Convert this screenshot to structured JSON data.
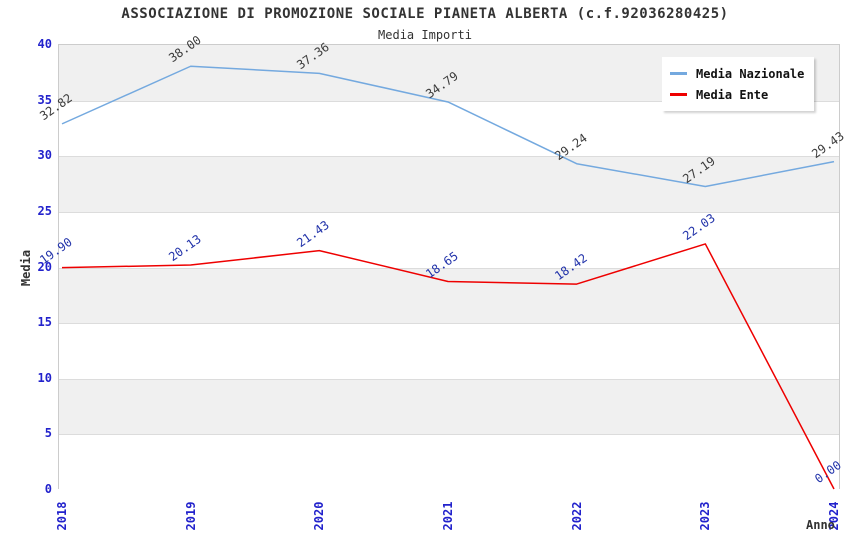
{
  "chart_data": {
    "type": "line",
    "title": "ASSOCIAZIONE DI PROMOZIONE SOCIALE PIANETA ALBERTA (c.f.92036280425)",
    "subtitle": "Media Importi",
    "xlabel": "Anno",
    "ylabel": "Media",
    "categories": [
      "2018",
      "2019",
      "2020",
      "2021",
      "2022",
      "2023",
      "2024"
    ],
    "series": [
      {
        "name": "Media Nazionale",
        "color": "#74a9df",
        "label_color": "#3c3c3c",
        "values": [
          32.82,
          38.0,
          37.36,
          34.79,
          29.24,
          27.19,
          29.43
        ],
        "point_labels": [
          "32.82",
          "38.00",
          "37.36",
          "34.79",
          "29.24",
          "27.19",
          "29.43"
        ]
      },
      {
        "name": "Media Ente",
        "color": "#ee0000",
        "label_color": "#2233aa",
        "values": [
          19.9,
          20.13,
          21.43,
          18.65,
          18.42,
          22.03,
          0.0
        ],
        "point_labels": [
          "19.90",
          "20.13",
          "21.43",
          "18.65",
          "18.42",
          "22.03",
          "0.00"
        ]
      }
    ],
    "ylim": [
      0,
      40
    ],
    "ytick_step": 5,
    "yticks": [
      "0",
      "5",
      "10",
      "15",
      "20",
      "25",
      "30",
      "35",
      "40"
    ],
    "grid": "horizontal-bands",
    "band_color": "#f0f0f0",
    "gridline_color": "#dcdcdc",
    "tick_label_color": "#2222cc",
    "legend_position": "top-right"
  }
}
